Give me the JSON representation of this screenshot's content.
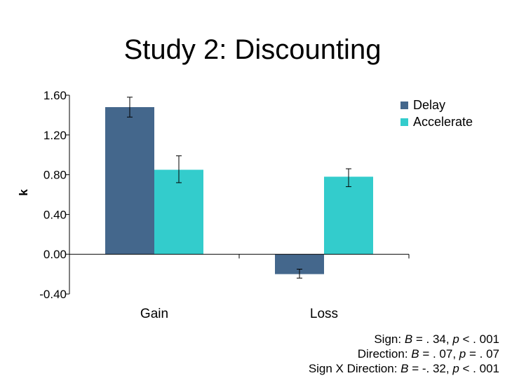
{
  "chart_data": {
    "type": "bar",
    "title": "Study 2: Discounting",
    "xlabel": "",
    "ylabel": "k",
    "categories": [
      "Gain",
      "Loss"
    ],
    "series": [
      {
        "name": "Delay",
        "color": "#44678C",
        "values": [
          1.48,
          -0.2
        ],
        "error_low": [
          1.38,
          -0.24
        ],
        "error_high": [
          1.58,
          -0.15
        ]
      },
      {
        "name": "Accelerate",
        "color": "#33CCCC",
        "values": [
          0.85,
          0.78
        ],
        "error_low": [
          0.72,
          0.68
        ],
        "error_high": [
          0.99,
          0.86
        ]
      }
    ],
    "ylim": [
      -0.4,
      1.6
    ],
    "yticks": [
      -0.4,
      0.0,
      0.4,
      0.8,
      1.2,
      1.6
    ],
    "ytick_labels": [
      "-0.40",
      "0.00",
      "0.40",
      "0.80",
      "1.20",
      "1.60"
    ],
    "grid": false,
    "legend_position": "top-right",
    "annotations": [
      {
        "parts": [
          {
            "text": "Sign: ",
            "italic": false
          },
          {
            "text": "B",
            "italic": true
          },
          {
            "text": " = . 34, ",
            "italic": false
          },
          {
            "text": "p",
            "italic": true
          },
          {
            "text": " < . 001",
            "italic": false
          }
        ]
      },
      {
        "parts": [
          {
            "text": "Direction: ",
            "italic": false
          },
          {
            "text": "B",
            "italic": true
          },
          {
            "text": " = . 07, ",
            "italic": false
          },
          {
            "text": "p",
            "italic": true
          },
          {
            "text": " = . 07",
            "italic": false
          }
        ]
      },
      {
        "parts": [
          {
            "text": "Sign X Direction: ",
            "italic": false
          },
          {
            "text": "B",
            "italic": true
          },
          {
            "text": " = -. 32, ",
            "italic": false
          },
          {
            "text": "p",
            "italic": true
          },
          {
            "text": " < . 001",
            "italic": false
          }
        ]
      }
    ]
  }
}
